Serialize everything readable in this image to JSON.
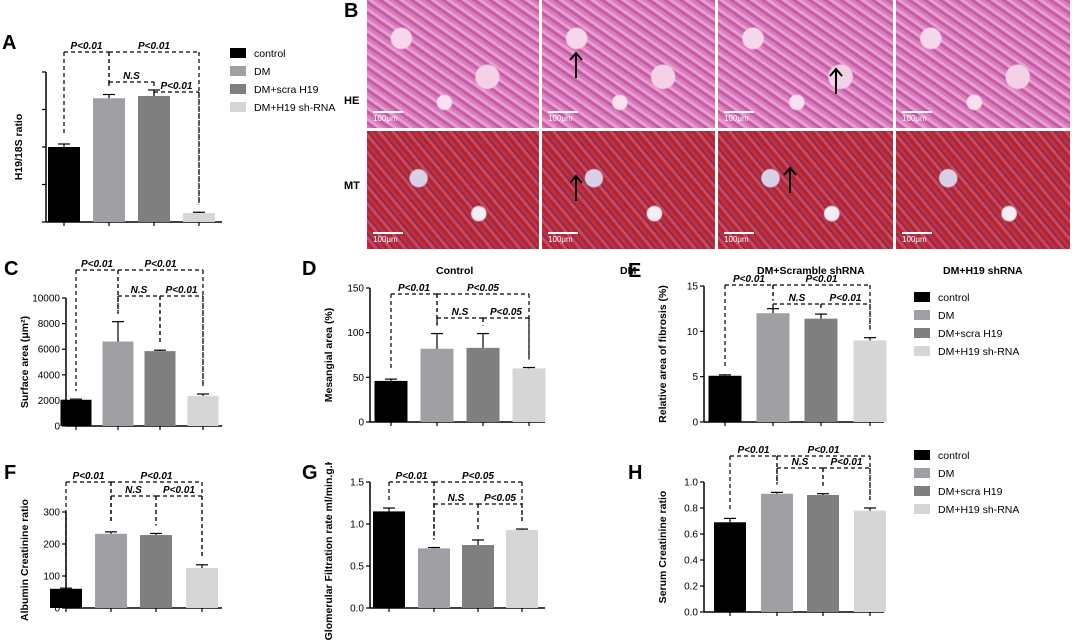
{
  "panel_letters": {
    "A": "A",
    "B": "B",
    "C": "C",
    "D": "D",
    "E": "E",
    "F": "F",
    "G": "G",
    "H": "H"
  },
  "colors": {
    "control": "#000000",
    "dm": "#a0a0a4",
    "scra": "#7f7f80",
    "shrna": "#d6d6d6"
  },
  "legend": [
    "control",
    "DM",
    "DM+scra H19",
    "DM+H19 sh-RNA"
  ],
  "micrograph": {
    "row_labels": [
      "HE",
      "MT"
    ],
    "column_titles": [
      "Control",
      "DM",
      "DM+Scramble shRNA",
      "DM+H19 shRNA"
    ],
    "scale_bar": "100μm",
    "arrow_panels": [
      1,
      2
    ]
  },
  "chart_data": [
    {
      "id": "A",
      "type": "bar",
      "categories": [
        "control",
        "DM",
        "DM+scra H19",
        "DM+H19 sh-RNA"
      ],
      "values": [
        1.0,
        1.65,
        1.68,
        0.12
      ],
      "errors": [
        0.04,
        0.05,
        0.08,
        0.01
      ],
      "ylabel": "H19/18S ratio",
      "ylim": [
        0,
        2.0
      ],
      "yticks": [],
      "annotations": [
        "P<0.01",
        "P<0.01",
        "N.S",
        "P<0.01"
      ]
    },
    {
      "id": "C",
      "type": "bar",
      "categories": [
        "control",
        "DM",
        "DM+scra H19",
        "DM+H19 sh-RNA"
      ],
      "values": [
        2050,
        6600,
        5850,
        2350
      ],
      "errors": [
        50,
        1550,
        70,
        150
      ],
      "ylabel": "Surface area (μm²)",
      "ylim": [
        0,
        10000
      ],
      "yticks": [
        "0",
        "2000",
        "4000",
        "6000",
        "8000",
        "10000"
      ],
      "annotations": [
        "P<0.01",
        "P<0.01",
        "N.S",
        "P<0.01"
      ]
    },
    {
      "id": "D",
      "type": "bar",
      "categories": [
        "control",
        "DM",
        "DM+scra H19",
        "DM+H19 sh-RNA"
      ],
      "values": [
        46,
        82,
        83,
        60
      ],
      "errors": [
        2,
        17,
        16,
        1
      ],
      "ylabel": "Mesangial area (%)",
      "ylim": [
        0,
        150
      ],
      "yticks": [
        "0",
        "50",
        "100",
        "150"
      ],
      "annotations": [
        "P<0.01",
        "P<0.05",
        "N.S",
        "P<0.05"
      ]
    },
    {
      "id": "E",
      "type": "bar",
      "categories": [
        "control",
        "DM",
        "DM+scra H19",
        "DM+H19 sh-RNA"
      ],
      "values": [
        5.1,
        12.0,
        11.4,
        9.0
      ],
      "errors": [
        0.1,
        0.5,
        0.5,
        0.3
      ],
      "ylabel": "Relative area of fibrosis (%)",
      "ylim": [
        0,
        15
      ],
      "yticks": [
        "0",
        "5",
        "10",
        "15"
      ],
      "annotations": [
        "P<0.01",
        "P<0.01",
        "N.S",
        "P<0.01"
      ]
    },
    {
      "id": "F",
      "type": "bar",
      "categories": [
        "control",
        "DM",
        "DM+scra H19",
        "DM+H19 sh-RNA"
      ],
      "values": [
        60,
        232,
        228,
        125
      ],
      "errors": [
        2,
        6,
        5,
        10
      ],
      "ylabel": "Albumin Creatinine ratio",
      "ylim": [
        0,
        300
      ],
      "yticks": [
        "0",
        "100",
        "200",
        "300"
      ],
      "annotations": [
        "P<0.01",
        "P<0.01",
        "N.S",
        "P<0.01"
      ]
    },
    {
      "id": "G",
      "type": "bar",
      "categories": [
        "control",
        "DM",
        "DM+scra H19",
        "DM+H19 sh-RNA"
      ],
      "values": [
        1.15,
        0.71,
        0.75,
        0.93
      ],
      "errors": [
        0.04,
        0.01,
        0.06,
        0.01
      ],
      "ylabel": "Glomerular Filtration rate ml/min.g.Kw",
      "ylim": [
        0,
        1.5
      ],
      "yticks": [
        "0.0",
        "0.5",
        "1.0",
        "1.5"
      ],
      "annotations": [
        "P<0.01",
        "P<0.05",
        "N.S",
        "P<0.05"
      ]
    },
    {
      "id": "H",
      "type": "bar",
      "categories": [
        "control",
        "DM",
        "DM+scra H19",
        "DM+H19 sh-RNA"
      ],
      "values": [
        0.69,
        0.91,
        0.9,
        0.78
      ],
      "errors": [
        0.03,
        0.01,
        0.01,
        0.02
      ],
      "ylabel": "Serum Creatinine ratio",
      "ylim": [
        0,
        1.0
      ],
      "yticks": [
        "0.0",
        "0.2",
        "0.4",
        "0.6",
        "0.8",
        "1.0"
      ],
      "annotations": [
        "P<0.01",
        "P<0.01",
        "N.S",
        "P<0.01"
      ]
    }
  ]
}
